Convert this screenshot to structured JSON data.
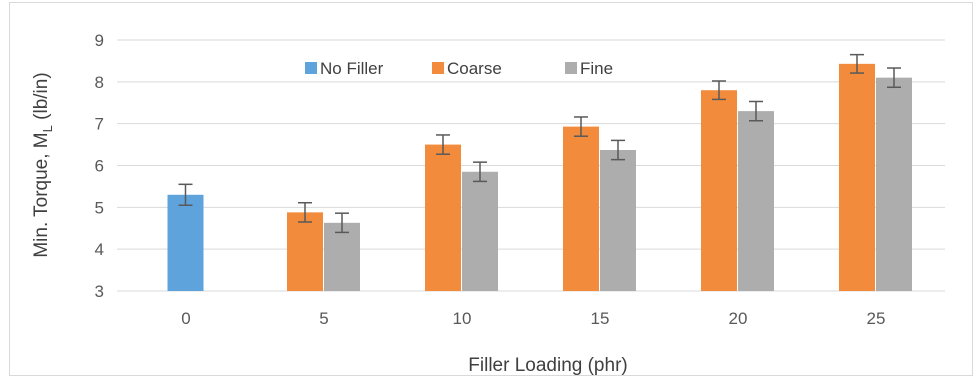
{
  "chart_data": {
    "type": "bar",
    "title": "",
    "xlabel": "Filler Loading (phr)",
    "ylabel": "Min. Torque, M",
    "ylabel_subscript": "L",
    "ylabel_unit": " (lb/in)",
    "categories": [
      "0",
      "5",
      "10",
      "15",
      "20",
      "25"
    ],
    "ylim": [
      3,
      9
    ],
    "yticks": [
      "3",
      "4",
      "5",
      "6",
      "7",
      "8",
      "9"
    ],
    "grid": true,
    "legend_position": "top-center",
    "series": [
      {
        "name": "No Filler",
        "color": "#5ea3db",
        "values": [
          5.3,
          null,
          null,
          null,
          null,
          null
        ],
        "errors": [
          0.25,
          null,
          null,
          null,
          null,
          null
        ]
      },
      {
        "name": "Coarse",
        "color": "#f28c3c",
        "values": [
          null,
          4.88,
          6.5,
          6.93,
          7.8,
          8.43
        ],
        "errors": [
          null,
          0.23,
          0.23,
          0.23,
          0.22,
          0.22
        ]
      },
      {
        "name": "Fine",
        "color": "#adadad",
        "values": [
          null,
          4.63,
          5.85,
          6.37,
          7.3,
          8.1
        ],
        "errors": [
          null,
          0.23,
          0.23,
          0.23,
          0.23,
          0.23
        ]
      }
    ]
  }
}
